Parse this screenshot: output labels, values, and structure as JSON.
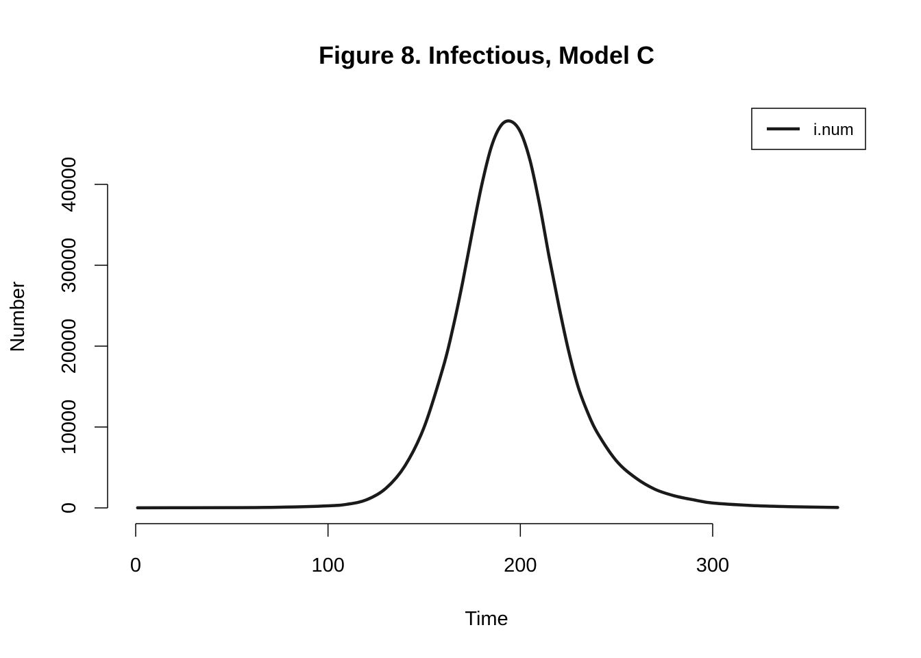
{
  "chart_data": {
    "type": "line",
    "title": "Figure 8. Infectious, Model C",
    "xlabel": "Time",
    "ylabel": "Number",
    "xlim": [
      1,
      365
    ],
    "ylim": [
      0,
      48000
    ],
    "xticks": [
      0,
      100,
      200,
      300
    ],
    "xtick_labels": [
      "0",
      "100",
      "200",
      "300"
    ],
    "yticks": [
      0,
      10000,
      20000,
      30000,
      40000
    ],
    "ytick_labels": [
      "0",
      "10000",
      "20000",
      "30000",
      "40000"
    ],
    "grid": false,
    "legend": {
      "position": "top-right",
      "entries": [
        "i.num"
      ]
    },
    "colors": {
      "line": "#1a1a1a"
    },
    "series": [
      {
        "name": "i.num",
        "x": [
          1,
          50,
          75,
          100,
          110,
          120,
          130,
          140,
          150,
          160,
          165,
          170,
          175,
          180,
          185,
          190,
          195,
          200,
          205,
          210,
          215,
          220,
          225,
          230,
          235,
          240,
          250,
          260,
          270,
          280,
          290,
          300,
          320,
          340,
          365
        ],
        "y": [
          10,
          30,
          80,
          250,
          450,
          1000,
          2400,
          5200,
          10000,
          17500,
          22300,
          27900,
          34100,
          40000,
          44700,
          47300,
          47800,
          46500,
          43000,
          37500,
          31000,
          25000,
          19500,
          15000,
          11800,
          9300,
          5800,
          3700,
          2300,
          1500,
          1000,
          600,
          300,
          150,
          50
        ]
      }
    ]
  }
}
